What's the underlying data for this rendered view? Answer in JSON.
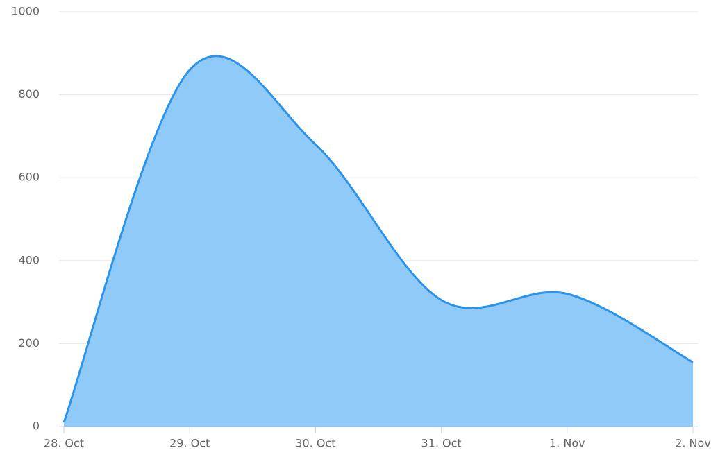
{
  "chart_data": {
    "type": "area",
    "categories": [
      "28. Oct",
      "29. Oct",
      "30. Oct",
      "31. Oct",
      "1. Nov",
      "2. Nov"
    ],
    "values": [
      10,
      860,
      680,
      305,
      320,
      155
    ],
    "color": "#2b94ea",
    "fill": "#90caf9",
    "ylim": [
      0,
      1000
    ],
    "yticks": [
      0,
      200,
      400,
      600,
      800,
      1000
    ],
    "grid": true,
    "smooth": true
  }
}
